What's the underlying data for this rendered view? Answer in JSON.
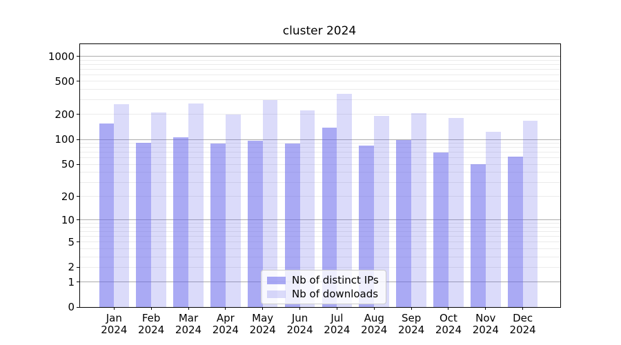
{
  "title": "cluster 2024",
  "colors": {
    "ips_bar": "rgba(100,100,235,0.55)",
    "downloads_bar": "rgba(100,100,235,0.23)",
    "grid_major_color": "#aaaaaa",
    "grid_minor_color": "#ebebeb",
    "spine_color": "#000000",
    "text_color": "#000000"
  },
  "legend": {
    "entries": [
      {
        "label": "Nb of distinct IPs",
        "swatch": "ips-swatch"
      },
      {
        "label": "Nb of downloads",
        "swatch": "downloads-swatch"
      }
    ]
  },
  "chart_data": {
    "type": "bar",
    "title": "cluster 2024",
    "categories": [
      "Jan",
      "Feb",
      "Mar",
      "Apr",
      "May",
      "Jun",
      "Jul",
      "Aug",
      "Sep",
      "Oct",
      "Nov",
      "Dec"
    ],
    "year": "2024",
    "series": [
      {
        "name": "Nb of distinct IPs",
        "values": [
          155,
          91,
          107,
          89,
          96,
          90,
          139,
          85,
          99,
          69,
          50,
          62
        ]
      },
      {
        "name": "Nb of downloads",
        "values": [
          264,
          213,
          272,
          198,
          296,
          225,
          351,
          191,
          206,
          181,
          125,
          168
        ]
      }
    ],
    "xlabel": "",
    "ylabel": "",
    "y_scale": "log1p",
    "ylim": [
      0,
      1395
    ],
    "y_ticks": [
      0,
      1,
      2,
      5,
      10,
      20,
      50,
      100,
      200,
      500,
      1000
    ],
    "grid": "on",
    "grid_major_values": [
      1,
      10,
      100,
      1000
    ],
    "grid_minor_values": [
      2,
      3,
      4,
      5,
      6,
      7,
      8,
      9,
      20,
      30,
      40,
      50,
      60,
      70,
      80,
      90,
      200,
      300,
      400,
      500,
      600,
      700,
      800,
      900
    ],
    "legend_position": "lower center"
  }
}
